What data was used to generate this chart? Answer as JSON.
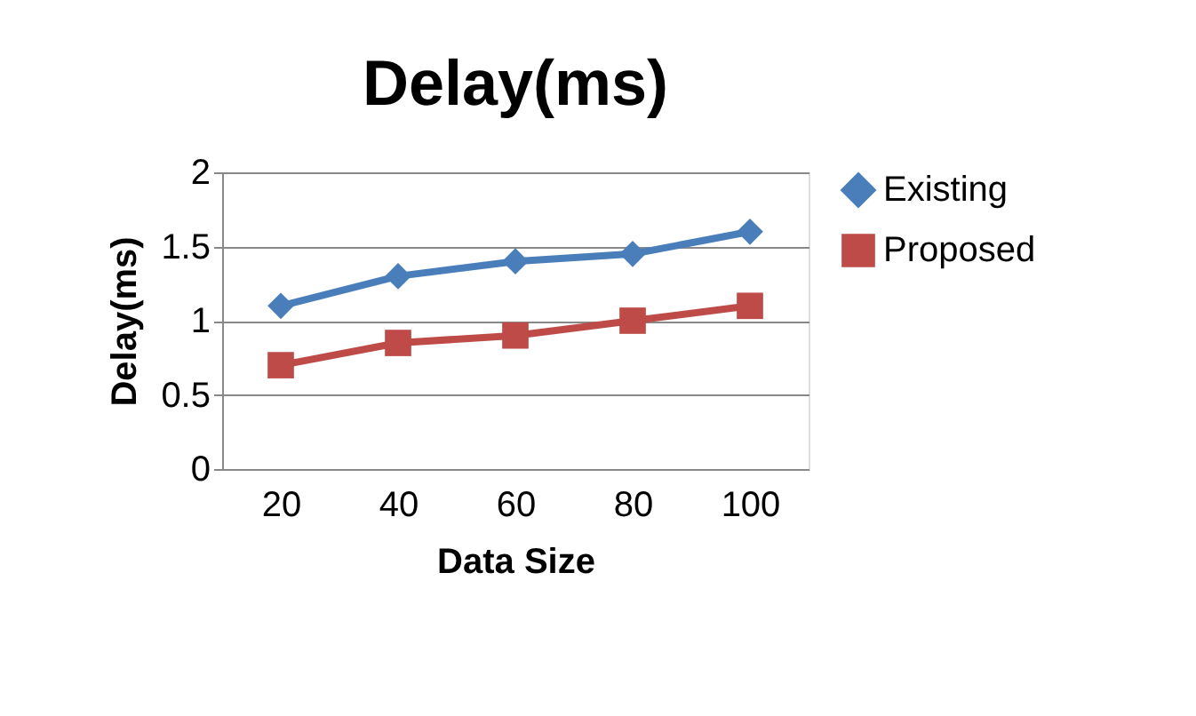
{
  "chart_data": {
    "type": "line",
    "title": "Delay(ms)",
    "xlabel": "Data Size",
    "ylabel": "Delay(ms)",
    "categories": [
      "20",
      "40",
      "60",
      "80",
      "100"
    ],
    "series": [
      {
        "name": "Existing",
        "color": "#4a7ebb",
        "marker": "diamond",
        "values": [
          1.1,
          1.3,
          1.4,
          1.45,
          1.6
        ]
      },
      {
        "name": "Proposed",
        "color": "#be4b48",
        "marker": "square",
        "values": [
          0.7,
          0.85,
          0.9,
          1.0,
          1.1
        ]
      }
    ],
    "ylim": [
      0,
      2
    ],
    "yticks": [
      0,
      0.5,
      1,
      1.5,
      2
    ],
    "grid": "y",
    "legend": "right",
    "line_style": "solid"
  }
}
